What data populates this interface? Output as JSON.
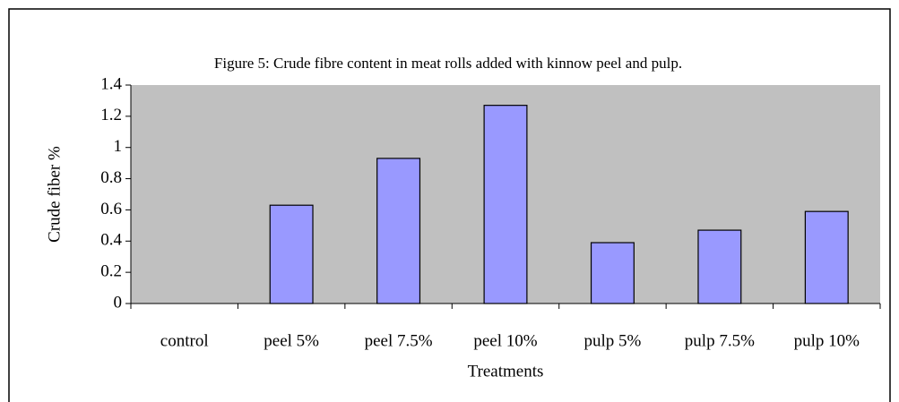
{
  "chart_data": {
    "type": "bar",
    "title": "Figure 5: Crude fibre content in meat rolls added with kinnow peel and pulp.",
    "categories": [
      "control",
      "peel 5%",
      "peel 7.5%",
      "peel 10%",
      "pulp 5%",
      "pulp 7.5%",
      "pulp 10%"
    ],
    "values": [
      0,
      0.63,
      0.93,
      1.27,
      0.39,
      0.47,
      0.59
    ],
    "color": "#9999ff",
    "x_label": "Treatments",
    "y_label": "Crude fiber %",
    "ylim": [
      0,
      1.4
    ],
    "yticks": [
      0,
      0.2,
      0.4,
      0.6,
      0.8,
      1,
      1.2,
      1.4
    ],
    "plot_background": "#c0c0c0"
  }
}
